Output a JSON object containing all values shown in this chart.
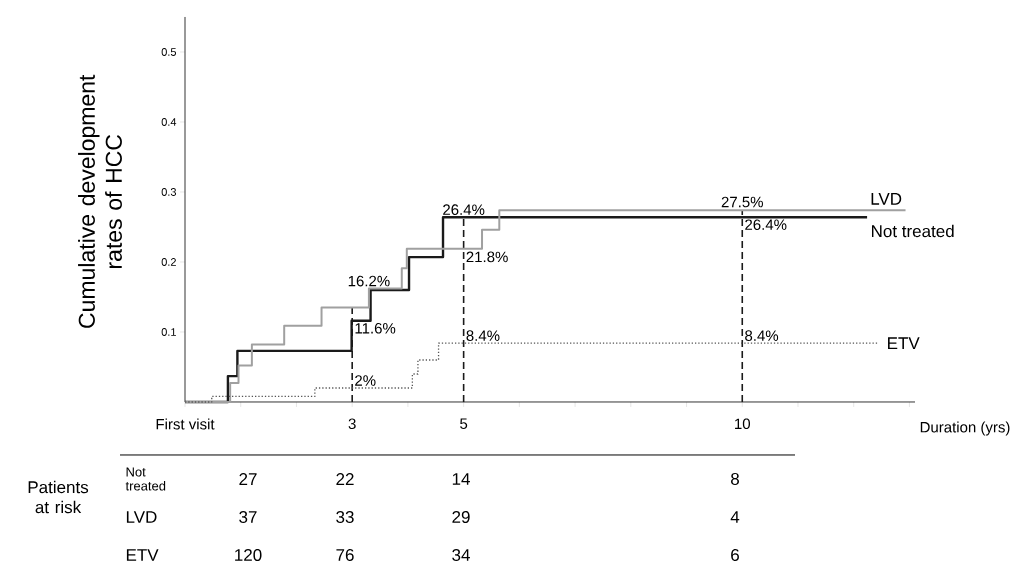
{
  "chart_data": {
    "type": "step",
    "xlabel": "Duration (yrs)",
    "ylabel": "Cumulative development rates of HCC",
    "xlim": [
      0,
      13.1
    ],
    "ylim": [
      0,
      0.55
    ],
    "xticks": [
      {
        "value": 0,
        "label": "First visit"
      },
      {
        "value": 1,
        "label": null
      },
      {
        "value": 2,
        "label": null
      },
      3,
      {
        "value": 4,
        "label": null
      },
      5,
      {
        "value": 6,
        "label": null
      },
      {
        "value": 7,
        "label": null
      },
      {
        "value": 8,
        "label": null
      },
      {
        "value": 9,
        "label": null
      },
      10,
      {
        "value": 11,
        "label": null
      },
      {
        "value": 12,
        "label": null
      },
      {
        "value": 13,
        "label": null
      }
    ],
    "yticks": [
      0.1,
      0.2,
      0.3,
      0.4,
      0.5
    ],
    "grid": false,
    "marker": "none",
    "series": [
      {
        "name": "Not treated",
        "color": "#1a1a1a",
        "line_style": "solid",
        "x": [
          0,
          0.77,
          0.94,
          2.99,
          3.33,
          4.02,
          4.63,
          12.24
        ],
        "values": [
          0,
          0.037,
          0.073,
          0.116,
          0.16,
          0.207,
          0.264,
          0.264
        ]
      },
      {
        "name": "LVD",
        "color": "#a0a0a0",
        "line_style": "solid",
        "x": [
          0,
          0.81,
          0.96,
          1.2,
          1.78,
          2.45,
          3.3,
          3.89,
          3.98,
          5.33,
          5.64,
          12.93
        ],
        "values": [
          0,
          0.027,
          0.052,
          0.082,
          0.109,
          0.135,
          0.162,
          0.191,
          0.219,
          0.246,
          0.274,
          0.274
        ]
      },
      {
        "name": "ETV",
        "color": "#555555",
        "line_style": "dotted",
        "x": [
          0,
          0.48,
          2.33,
          4.08,
          4.18,
          4.55,
          12.42
        ],
        "values": [
          0,
          0.008,
          0.02,
          0.04,
          0.06,
          0.084,
          0.084
        ]
      }
    ],
    "ref_lines": [
      {
        "axis": "x",
        "value": 3,
        "color": "#1a1a1a",
        "line_style": "dashed"
      },
      {
        "axis": "x",
        "value": 5,
        "color": "#1a1a1a",
        "line_style": "dashed"
      },
      {
        "axis": "x",
        "value": 10,
        "color": "#1a1a1a",
        "line_style": "dashed"
      }
    ],
    "annotations": [
      {
        "text": "16.2%",
        "x": 3.3,
        "y": 0.162
      },
      {
        "text": "11.6%",
        "x": 3,
        "y": 0.116
      },
      {
        "text": "2%",
        "x": 3,
        "y": 0.02
      },
      {
        "text": "26.4%",
        "x": 5,
        "y": 0.264
      },
      {
        "text": "21.8%",
        "x": 5,
        "y": 0.218
      },
      {
        "text": "8.4%",
        "x": 5,
        "y": 0.084
      },
      {
        "text": "27.5%",
        "x": 10,
        "y": 0.275
      },
      {
        "text": "26.4%",
        "x": 10,
        "y": 0.264
      },
      {
        "text": "8.4%",
        "x": 10,
        "y": 0.084
      },
      "Patients at risk",
      "Not treated",
      "27",
      "22",
      "14",
      "8",
      "LVD",
      "37",
      "33",
      "29",
      "4",
      "ETV",
      "120",
      "76",
      "34",
      "6"
    ]
  }
}
